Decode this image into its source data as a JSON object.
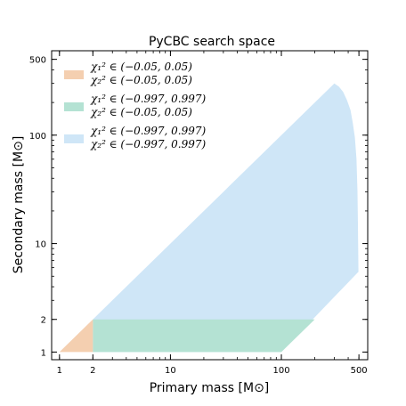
{
  "chart_data": {
    "type": "area",
    "title": "PyCBC search space",
    "xlabel": "Primary mass [M⊙]",
    "ylabel": "Secondary mass [M⊙]",
    "xscale": "log",
    "yscale": "log",
    "xlim": [
      0.85,
      600
    ],
    "ylim": [
      0.85,
      600
    ],
    "xticks": [
      1,
      2,
      10,
      100,
      500
    ],
    "xtick_labels": [
      "1",
      "2",
      "10",
      "100",
      "500"
    ],
    "yticks": [
      1,
      2,
      10,
      100,
      500
    ],
    "ytick_labels": [
      "1",
      "2",
      "10",
      "100",
      "500"
    ],
    "grid": false,
    "legend_position": "top-left",
    "series": [
      {
        "key": "blue",
        "color": "#cfe6f7",
        "legend_line1": "χ₁² ∈ (−0.997, 0.997)",
        "legend_line2": "χ₂² ∈ (−0.997, 0.997)",
        "points": [
          [
            2,
            2
          ],
          [
            300,
            300
          ],
          [
            330,
            280
          ],
          [
            360,
            250
          ],
          [
            390,
            210
          ],
          [
            420,
            170
          ],
          [
            440,
            130
          ],
          [
            460,
            95
          ],
          [
            475,
            60
          ],
          [
            485,
            30
          ],
          [
            490,
            15
          ],
          [
            495,
            5.5
          ],
          [
            100,
            1
          ],
          [
            2,
            1
          ]
        ]
      },
      {
        "key": "green",
        "color": "#b4e2d3",
        "legend_line1": "χ₁² ∈ (−0.997, 0.997)",
        "legend_line2": "χ₂² ∈ (−0.05, 0.05)",
        "points": [
          [
            2,
            1
          ],
          [
            100,
            1
          ],
          [
            200,
            2
          ],
          [
            2,
            2
          ]
        ]
      },
      {
        "key": "orange",
        "color": "#f4cfb0",
        "legend_line1": "χ₁² ∈ (−0.05, 0.05)",
        "legend_line2": "χ₂² ∈ (−0.05, 0.05)",
        "points": [
          [
            1,
            1
          ],
          [
            2,
            2
          ],
          [
            2,
            1
          ]
        ]
      }
    ]
  }
}
